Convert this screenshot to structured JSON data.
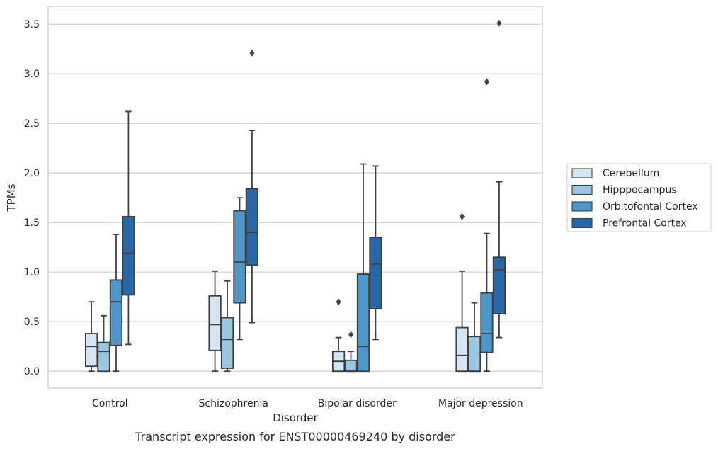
{
  "chart_data": {
    "type": "box",
    "title": "Transcript expression for ENST00000469240 by disorder",
    "xlabel": "Disorder",
    "ylabel": "TPMs",
    "ylim": [
      -0.17,
      3.68
    ],
    "yticks": [
      "0.0",
      "0.5",
      "1.0",
      "1.5",
      "2.0",
      "2.5",
      "3.0",
      "3.5"
    ],
    "grid": true,
    "legend_position": "right",
    "categories": [
      "Control",
      "Schizophrenia",
      "Bipolar disorder",
      "Major depression"
    ],
    "series": [
      {
        "name": "Cerebellum",
        "color": "#d6e5f4",
        "boxes": [
          {
            "whisker_low": 0.0,
            "q1": 0.05,
            "median": 0.25,
            "q3": 0.38,
            "whisker_high": 0.7,
            "outliers": []
          },
          {
            "whisker_low": 0.0,
            "q1": 0.21,
            "median": 0.47,
            "q3": 0.76,
            "whisker_high": 1.01,
            "outliers": []
          },
          {
            "whisker_low": 0.0,
            "q1": 0.0,
            "median": 0.1,
            "q3": 0.2,
            "whisker_high": 0.34,
            "outliers": [
              0.7
            ]
          },
          {
            "whisker_low": 0.0,
            "q1": 0.0,
            "median": 0.16,
            "q3": 0.44,
            "whisker_high": 1.01,
            "outliers": [
              1.56
            ]
          }
        ]
      },
      {
        "name": "Hipppocampus",
        "color": "#9ac7e0",
        "boxes": [
          {
            "whisker_low": 0.0,
            "q1": 0.0,
            "median": 0.2,
            "q3": 0.29,
            "whisker_high": 0.56,
            "outliers": []
          },
          {
            "whisker_low": 0.0,
            "q1": 0.03,
            "median": 0.32,
            "q3": 0.54,
            "whisker_high": 0.91,
            "outliers": []
          },
          {
            "whisker_low": 0.0,
            "q1": 0.0,
            "median": 0.0,
            "q3": 0.11,
            "whisker_high": 0.2,
            "outliers": [
              0.37
            ]
          },
          {
            "whisker_low": 0.0,
            "q1": 0.0,
            "median": 0.0,
            "q3": 0.35,
            "whisker_high": 0.69,
            "outliers": []
          }
        ]
      },
      {
        "name": "Orbitofontal Cortex",
        "color": "#5096c8",
        "boxes": [
          {
            "whisker_low": 0.0,
            "q1": 0.26,
            "median": 0.7,
            "q3": 0.92,
            "whisker_high": 1.38,
            "outliers": []
          },
          {
            "whisker_low": 0.32,
            "q1": 0.69,
            "median": 1.1,
            "q3": 1.62,
            "whisker_high": 1.75,
            "outliers": []
          },
          {
            "whisker_low": 0.0,
            "q1": 0.0,
            "median": 0.25,
            "q3": 0.98,
            "whisker_high": 2.09,
            "outliers": []
          },
          {
            "whisker_low": 0.0,
            "q1": 0.19,
            "median": 0.38,
            "q3": 0.79,
            "whisker_high": 1.39,
            "outliers": [
              2.92
            ]
          }
        ]
      },
      {
        "name": "Prefrontal Cortex",
        "color": "#2a67a7",
        "boxes": [
          {
            "whisker_low": 0.27,
            "q1": 0.77,
            "median": 1.19,
            "q3": 1.56,
            "whisker_high": 2.62,
            "outliers": []
          },
          {
            "whisker_low": 0.49,
            "q1": 1.07,
            "median": 1.4,
            "q3": 1.84,
            "whisker_high": 2.43,
            "outliers": [
              3.21
            ]
          },
          {
            "whisker_low": 0.32,
            "q1": 0.63,
            "median": 1.08,
            "q3": 1.35,
            "whisker_high": 2.07,
            "outliers": []
          },
          {
            "whisker_low": 0.34,
            "q1": 0.58,
            "median": 1.02,
            "q3": 1.15,
            "whisker_high": 1.91,
            "outliers": [
              3.51
            ]
          }
        ]
      }
    ]
  }
}
